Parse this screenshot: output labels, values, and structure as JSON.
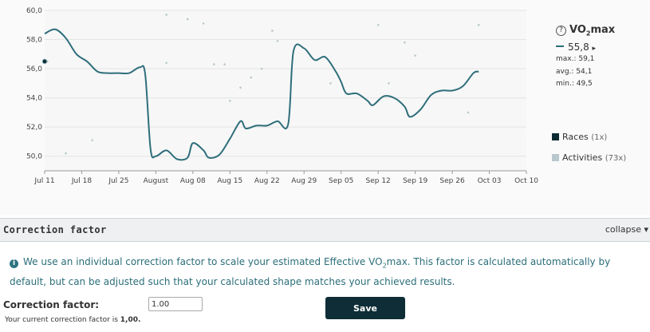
{
  "chart_data": {
    "type": "line",
    "x_labels": [
      "Jul 11",
      "Jul 18",
      "Jul 25",
      "August",
      "Aug 08",
      "Aug 15",
      "Aug 22",
      "Aug 29",
      "Sep 05",
      "Sep 12",
      "Sep 19",
      "Sep 26",
      "Oct 03",
      "Oct 10"
    ],
    "y_ticks": [
      "60,0",
      "58,0",
      "56,0",
      "54,0",
      "52,0",
      "50,0"
    ],
    "ylim": [
      49.0,
      60.0
    ],
    "grid": "horizontal",
    "series_name": "VO2max",
    "line": [
      [
        0,
        58.4
      ],
      [
        2,
        58.7
      ],
      [
        4,
        58.1
      ],
      [
        6,
        57.0
      ],
      [
        8,
        56.5
      ],
      [
        10,
        55.8
      ],
      [
        12,
        55.7
      ],
      [
        14,
        55.7
      ],
      [
        16,
        55.7
      ],
      [
        18,
        56.1
      ],
      [
        19,
        55.6
      ],
      [
        20,
        50.5
      ],
      [
        21,
        50.0
      ],
      [
        23,
        50.4
      ],
      [
        25,
        49.8
      ],
      [
        27,
        49.9
      ],
      [
        28,
        50.9
      ],
      [
        30,
        50.4
      ],
      [
        31,
        49.9
      ],
      [
        33,
        50.1
      ],
      [
        35,
        51.2
      ],
      [
        37,
        52.4
      ],
      [
        38,
        51.9
      ],
      [
        40,
        52.1
      ],
      [
        42,
        52.1
      ],
      [
        44,
        52.4
      ],
      [
        46,
        52.2
      ],
      [
        47,
        57.2
      ],
      [
        49,
        57.4
      ],
      [
        51,
        56.6
      ],
      [
        53,
        56.8
      ],
      [
        55,
        55.8
      ],
      [
        56,
        55.1
      ],
      [
        57,
        54.3
      ],
      [
        59,
        54.3
      ],
      [
        61,
        53.8
      ],
      [
        62,
        53.5
      ],
      [
        64,
        54.1
      ],
      [
        66,
        54.0
      ],
      [
        68,
        53.4
      ],
      [
        69,
        52.7
      ],
      [
        71,
        53.2
      ],
      [
        73,
        54.2
      ],
      [
        75,
        54.5
      ],
      [
        77,
        54.5
      ],
      [
        79,
        54.8
      ],
      [
        81,
        55.7
      ],
      [
        82,
        55.8
      ]
    ],
    "activities": [
      [
        0.5,
        56.5
      ],
      [
        4,
        50.2
      ],
      [
        9,
        51.1
      ],
      [
        23,
        59.7
      ],
      [
        23,
        56.4
      ],
      [
        27,
        59.4
      ],
      [
        30,
        59.1
      ],
      [
        32,
        56.3
      ],
      [
        34,
        56.3
      ],
      [
        35,
        53.8
      ],
      [
        37,
        54.7
      ],
      [
        39,
        55.4
      ],
      [
        41,
        56.0
      ],
      [
        43,
        58.6
      ],
      [
        44,
        57.9
      ],
      [
        54,
        55.0
      ],
      [
        63,
        59.0
      ],
      [
        65,
        55.0
      ],
      [
        68,
        57.8
      ],
      [
        70,
        56.9
      ],
      [
        80,
        53.0
      ],
      [
        82,
        59.0
      ]
    ],
    "races": [
      [
        0,
        56.5
      ]
    ],
    "colors": {
      "line": "#2e6e7a",
      "races": "#0b2a32",
      "activities": "#b9c8cc",
      "grid": "#e4e4e4"
    }
  },
  "sidebar": {
    "title_icon": "?",
    "title_pre": "VO",
    "title_sub": "2",
    "title_post": "max",
    "value": "55,8",
    "arrow": "▸",
    "max_text": "max.: 59,1",
    "avg_text": "avg.: 54,1",
    "min_text": "min.: 49,5"
  },
  "legend": {
    "races_label": "Races",
    "races_count": "(1x)",
    "activities_label": "Activities",
    "activities_count": "(73x)"
  },
  "section": {
    "title": "Correction factor",
    "collapse_label": "collapse ▾"
  },
  "info": {
    "icon": "i",
    "text_a": "We use an individual correction factor to scale your estimated Effective VO",
    "text_sub": "2",
    "text_b": "max. This factor is calculated automatically by default, but can be adjusted such that your calculated shape matches your achieved results."
  },
  "form": {
    "label": "Correction factor:",
    "input_value": "1.00",
    "current_text": "Your current correction factor is",
    "current_value": "1,00.",
    "save_label": "Save"
  }
}
